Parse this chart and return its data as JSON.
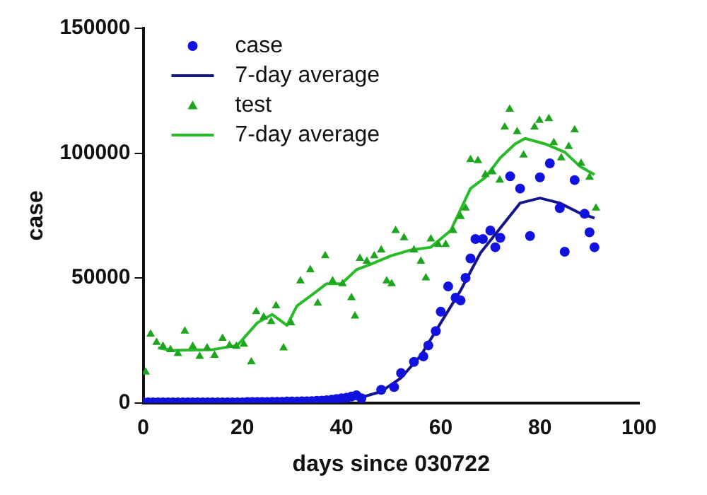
{
  "chart_data": {
    "type": "scatter",
    "xlabel": "days since 030722",
    "ylabel": "case",
    "xlim": [
      0,
      100
    ],
    "xticks": [
      0,
      20,
      40,
      60,
      80,
      100
    ],
    "ylim": [
      0,
      150000
    ],
    "yticks": [
      0,
      50000,
      100000,
      150000
    ],
    "grid": false,
    "legend": "top left",
    "series": [
      {
        "name": "case",
        "marker": "circle",
        "color": "#1212e0",
        "x": [
          0,
          1,
          2,
          3,
          4,
          5,
          6,
          7,
          8,
          9,
          10,
          11,
          12,
          13,
          14,
          15,
          16,
          17,
          18,
          19,
          20,
          21,
          22,
          23,
          24,
          25,
          26,
          27,
          28,
          29,
          30,
          31,
          32,
          33,
          34,
          35,
          36,
          37,
          38,
          39,
          40,
          41,
          42,
          43,
          44,
          48,
          50.6,
          52,
          54.6,
          56.5,
          57.5,
          59,
          60,
          61.5,
          63,
          64,
          65,
          66,
          67,
          68.5,
          70,
          71,
          72,
          74,
          76,
          78,
          80,
          82,
          84,
          85,
          87,
          89,
          90,
          91
        ],
        "values": [
          200,
          200,
          200,
          200,
          200,
          200,
          200,
          200,
          200,
          200,
          200,
          200,
          200,
          200,
          200,
          200,
          200,
          200,
          200,
          200,
          200,
          300,
          300,
          300,
          300,
          300,
          400,
          400,
          400,
          500,
          500,
          500,
          600,
          600,
          700,
          800,
          900,
          1000,
          1200,
          1500,
          1800,
          2000,
          2500,
          3000,
          1800,
          5200,
          6300,
          11900,
          16400,
          18600,
          23000,
          28700,
          36500,
          46600,
          42100,
          41000,
          50000,
          57800,
          65600,
          65600,
          69000,
          62300,
          66100,
          90700,
          85800,
          66800,
          90300,
          95900,
          78000,
          60500,
          89200,
          75700,
          68300,
          62300
        ]
      },
      {
        "name": "7-day average",
        "type": "line",
        "marker": "none",
        "color": "#14148c",
        "x": [
          0,
          10,
          20,
          30,
          40,
          44,
          48,
          52,
          56,
          60,
          64,
          68,
          72,
          76,
          80,
          84,
          88,
          91
        ],
        "values": [
          200,
          200,
          200,
          500,
          1300,
          2200,
          4500,
          10000,
          19000,
          32000,
          45000,
          60000,
          70000,
          80000,
          82000,
          80000,
          76000,
          74000
        ]
      },
      {
        "name": "test",
        "marker": "triangle",
        "color": "#1ea51e",
        "x": [
          0.5,
          1.5,
          2.7,
          4,
          5.5,
          7,
          8.4,
          10,
          11.4,
          12.9,
          14.4,
          16,
          17.4,
          18.8,
          20.3,
          21.8,
          22.8,
          24.3,
          25.8,
          26.8,
          28.3,
          29.8,
          31.7,
          33.7,
          35.2,
          36.7,
          38.2,
          40.2,
          42,
          42.7,
          43.7,
          45.1,
          46.6,
          48,
          49.1,
          50.1,
          50.9,
          52.6,
          54.6,
          56,
          57,
          58,
          59.5,
          61,
          62.5,
          64,
          65,
          66,
          67.5,
          69,
          70.4,
          71.9,
          72.9,
          73.9,
          75.4,
          76.7,
          78.9,
          79.9,
          81.8,
          82.8,
          84.3,
          85.8,
          87,
          88.3,
          90,
          91.3
        ],
        "values": [
          12300,
          27500,
          24200,
          22600,
          21300,
          19700,
          28700,
          22600,
          18600,
          22000,
          19000,
          25800,
          23000,
          22600,
          23500,
          16400,
          36500,
          34300,
          32500,
          38800,
          22000,
          32000,
          48800,
          53300,
          39900,
          58900,
          48800,
          47700,
          42100,
          34700,
          57800,
          56700,
          58900,
          61200,
          48800,
          47700,
          69000,
          66100,
          61200,
          56700,
          50000,
          65600,
          63400,
          63400,
          69000,
          74600,
          78000,
          97400,
          97000,
          91400,
          92500,
          89200,
          110400,
          117600,
          108600,
          99200,
          110400,
          113100,
          113800,
          104200,
          98100,
          102600,
          109300,
          95900,
          90300,
          78000
        ]
      },
      {
        "name": "7-day average",
        "type": "line",
        "marker": "none",
        "color": "#28bb28",
        "x": [
          3,
          6,
          14,
          19,
          23,
          26,
          29,
          31,
          34,
          37,
          40,
          43,
          46,
          50,
          54,
          58,
          62,
          66,
          69,
          72,
          75,
          77,
          81,
          85,
          88,
          91
        ],
        "values": [
          22000,
          21000,
          21300,
          23000,
          32000,
          35400,
          31000,
          38800,
          43200,
          47700,
          47700,
          53300,
          55600,
          58900,
          61200,
          62300,
          69000,
          85800,
          90300,
          98100,
          103700,
          105900,
          103700,
          100400,
          94800,
          91400
        ]
      }
    ]
  }
}
